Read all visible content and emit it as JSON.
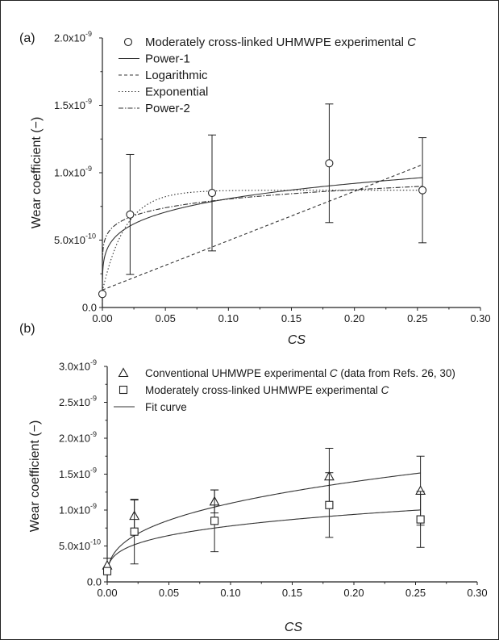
{
  "chart_data": [
    {
      "panel_label": "(a)",
      "type": "scatter",
      "xlabel": "CS",
      "ylabel": "Wear coefficient (−)",
      "xlim": [
        0,
        0.3
      ],
      "ylim": [
        0,
        2e-09
      ],
      "x_ticks": [
        0.0,
        0.05,
        0.1,
        0.15,
        0.2,
        0.25,
        0.3
      ],
      "x_tick_labels": [
        "0.00",
        "0.05",
        "0.10",
        "0.15",
        "0.20",
        "0.25",
        "0.30"
      ],
      "y_ticks": [
        0,
        5e-10,
        1e-09,
        1.5e-09,
        2e-09
      ],
      "y_tick_mantissas": [
        "0.0",
        "5.0x10",
        "1.0x10",
        "1.5x10",
        "2.0x10"
      ],
      "y_tick_exponents": [
        "",
        "-10",
        "-9",
        "-9",
        "-9"
      ],
      "legend_position": "top",
      "series": [
        {
          "name": "Moderately cross-linked UHMWPE experimental C",
          "kind": "points",
          "marker": "circle",
          "x": [
            0.0,
            0.022,
            0.087,
            0.18,
            0.254
          ],
          "y": [
            1e-10,
            6.9e-10,
            8.5e-10,
            1.07e-09,
            8.7e-10
          ],
          "err": [
            0,
            4.45e-10,
            4.3e-10,
            4.4e-10,
            3.9e-10
          ]
        },
        {
          "name": "Power-1",
          "kind": "curve",
          "model": "power",
          "a": 1.25e-09,
          "b": 0.19,
          "c": 0,
          "dash": ""
        },
        {
          "name": "Logarithmic",
          "kind": "curve",
          "model": "linear",
          "a": 1.3e-10,
          "b": 3.66e-09,
          "dash": "4,3"
        },
        {
          "name": "Exponential",
          "kind": "curve",
          "model": "exp",
          "a": 8.7e-10,
          "b": 7.5e-10,
          "c": 55,
          "dash": "1.5,2.5"
        },
        {
          "name": "Power-2",
          "kind": "curve",
          "model": "power",
          "a": 1.06e-09,
          "b": 0.12,
          "c": 0,
          "dash": "6,2,1.5,2"
        }
      ]
    },
    {
      "panel_label": "(b)",
      "type": "scatter",
      "xlabel": "CS",
      "ylabel": "Wear coefficient (−)",
      "xlim": [
        0,
        0.3
      ],
      "ylim": [
        0,
        3e-09
      ],
      "x_ticks": [
        0.0,
        0.05,
        0.1,
        0.15,
        0.2,
        0.25,
        0.3
      ],
      "x_tick_labels": [
        "0.00",
        "0.05",
        "0.10",
        "0.15",
        "0.20",
        "0.25",
        "0.30"
      ],
      "y_ticks": [
        0,
        5e-10,
        1e-09,
        1.5e-09,
        2e-09,
        2.5e-09,
        3e-09
      ],
      "y_tick_mantissas": [
        "0.0",
        "5.0x10",
        "1.0x10",
        "1.5x10",
        "2.0x10",
        "2.5x10",
        "3.0x10"
      ],
      "y_tick_exponents": [
        "",
        "-10",
        "-9",
        "-9",
        "-9",
        "-9",
        "-9"
      ],
      "legend_position": "top",
      "series": [
        {
          "name": "Conventional UHMWPE experimental C (data from Refs. 26, 30)",
          "kind": "points",
          "marker": "triangle",
          "x": [
            0.0,
            0.022,
            0.087,
            0.18,
            0.254
          ],
          "y": [
            2.3e-10,
            9.2e-10,
            1.12e-09,
            1.47e-09,
            1.27e-09
          ],
          "err": [
            1e-10,
            2.2e-10,
            1.6e-10,
            3.9e-10,
            4.8e-10
          ]
        },
        {
          "name": "Moderately cross-linked UHMWPE experimental C",
          "kind": "points",
          "marker": "square",
          "x": [
            0.0,
            0.022,
            0.087,
            0.18,
            0.254
          ],
          "y": [
            1.5e-10,
            7e-10,
            8.5e-10,
            1.07e-09,
            8.7e-10
          ],
          "err": [
            0,
            4.5e-10,
            4.3e-10,
            4.5e-10,
            3.9e-10
          ]
        },
        {
          "name": "Fit curve",
          "kind": "curve",
          "model": "power",
          "a": 2.45e-09,
          "b": 0.35,
          "c": 0,
          "dash": ""
        },
        {
          "name": "",
          "kind": "curve",
          "model": "power",
          "a": 1.45e-09,
          "b": 0.27,
          "c": 0,
          "dash": ""
        }
      ]
    }
  ]
}
